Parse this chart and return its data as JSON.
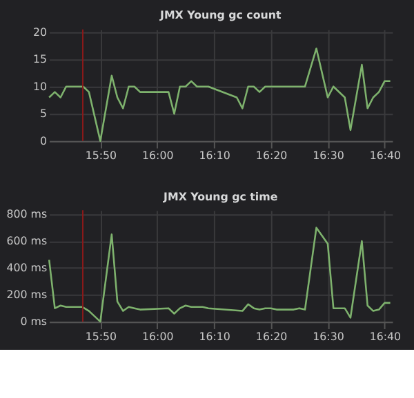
{
  "chart_data": [
    {
      "type": "line",
      "title": "JMX Young gc count",
      "x": [
        15.6833,
        15.7,
        15.7167,
        15.7333,
        15.7833,
        15.8,
        15.8333,
        15.8667,
        15.8833,
        15.9,
        15.9167,
        15.9333,
        15.95,
        16.0333,
        16.05,
        16.0667,
        16.0833,
        16.1,
        16.1167,
        16.15,
        16.2333,
        16.25,
        16.2667,
        16.2833,
        16.3,
        16.3167,
        16.4333,
        16.4667,
        16.5,
        16.5167,
        16.55,
        16.5667,
        16.6,
        16.6167,
        16.6333,
        16.65,
        16.6667,
        16.6833
      ],
      "series": [
        {
          "color": "#7eb26d",
          "values": [
            8,
            9,
            8,
            10,
            10,
            9,
            0,
            12,
            8,
            6,
            10,
            10,
            9,
            9,
            5,
            10,
            10,
            11,
            10,
            10,
            8,
            6,
            10,
            10,
            9,
            10,
            10,
            17,
            8,
            10,
            8,
            2,
            14,
            6,
            8,
            9,
            11,
            11
          ]
        }
      ],
      "xlim": [
        15.683,
        16.689
      ],
      "ylim": [
        0,
        20.5
      ],
      "xticks": [
        {
          "value": 15.8333,
          "label": "15:50"
        },
        {
          "value": 16.0,
          "label": "16:00"
        },
        {
          "value": 16.1667,
          "label": "16:10"
        },
        {
          "value": 16.3333,
          "label": "16:20"
        },
        {
          "value": 16.5,
          "label": "16:30"
        },
        {
          "value": 16.6667,
          "label": "16:40"
        }
      ],
      "yticks": [
        0,
        5,
        10,
        15,
        20
      ],
      "ref_lines": [
        {
          "axis": "x",
          "value": 15.782,
          "color": "#8b1a1a"
        }
      ],
      "grid": true,
      "marker": "none",
      "line_style": "solid"
    },
    {
      "type": "line",
      "title": "JMX Young gc time",
      "x": [
        15.6833,
        15.7,
        15.7167,
        15.7333,
        15.76,
        15.78,
        15.8,
        15.8333,
        15.8667,
        15.8833,
        15.9,
        15.9167,
        15.9333,
        15.95,
        16.0333,
        16.05,
        16.0667,
        16.0833,
        16.1,
        16.1167,
        16.1333,
        16.15,
        16.25,
        16.2667,
        16.2833,
        16.3,
        16.3167,
        16.3333,
        16.35,
        16.4,
        16.4167,
        16.4333,
        16.4667,
        16.5,
        16.5167,
        16.55,
        16.5667,
        16.6,
        16.6167,
        16.6333,
        16.65,
        16.6667,
        16.6833
      ],
      "series": [
        {
          "color": "#7eb26d",
          "values": [
            460,
            100,
            120,
            110,
            110,
            110,
            80,
            0,
            650,
            150,
            80,
            110,
            100,
            90,
            100,
            60,
            100,
            120,
            110,
            110,
            110,
            100,
            80,
            130,
            100,
            90,
            100,
            100,
            90,
            90,
            100,
            90,
            700,
            580,
            100,
            100,
            30,
            600,
            120,
            80,
            90,
            140,
            140
          ]
        }
      ],
      "xlim": [
        15.683,
        16.689
      ],
      "ylim": [
        0,
        830
      ],
      "xticks": [
        {
          "value": 15.8333,
          "label": "15:50"
        },
        {
          "value": 16.0,
          "label": "16:00"
        },
        {
          "value": 16.1667,
          "label": "16:10"
        },
        {
          "value": 16.3333,
          "label": "16:20"
        },
        {
          "value": 16.5,
          "label": "16:30"
        },
        {
          "value": 16.6667,
          "label": "16:40"
        }
      ],
      "yticks": [
        {
          "value": 0,
          "label": "0 ms"
        },
        {
          "value": 200,
          "label": "200 ms"
        },
        {
          "value": 400,
          "label": "400 ms"
        },
        {
          "value": 600,
          "label": "600 ms"
        },
        {
          "value": 800,
          "label": "800 ms"
        }
      ],
      "ref_lines": [
        {
          "axis": "x",
          "value": 15.782,
          "color": "#8b1a1a"
        }
      ],
      "grid": true,
      "marker": "none",
      "line_style": "solid"
    }
  ]
}
